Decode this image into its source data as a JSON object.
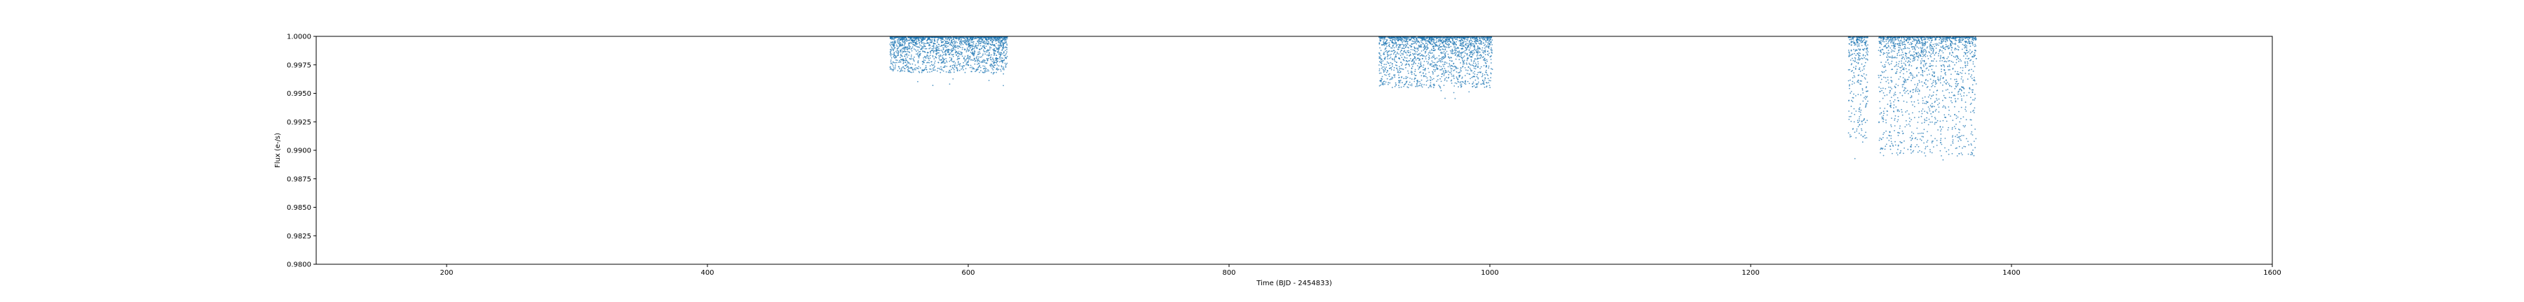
{
  "chart_data": {
    "type": "scatter",
    "title": "",
    "xlabel": "Time (BJD - 2454833)",
    "ylabel": "Flux (e-/s)",
    "xlim": [
      100,
      1600
    ],
    "ylim": [
      0.98,
      1.0
    ],
    "xticks": [
      200,
      400,
      600,
      800,
      1000,
      1200,
      1400,
      1600
    ],
    "xtick_labels": [
      "200",
      "400",
      "600",
      "800",
      "1000",
      "1200",
      "1400",
      "1600"
    ],
    "yticks": [
      0.98,
      0.9825,
      0.985,
      0.9875,
      0.99,
      0.9925,
      0.995,
      0.9975,
      1.0
    ],
    "ytick_labels": [
      "0.9800",
      "0.9825",
      "0.9850",
      "0.9875",
      "0.9900",
      "0.9925",
      "0.9950",
      "0.9975",
      "1.0000"
    ],
    "grid": false,
    "marker_color": "#1f77b4",
    "series": [
      {
        "segments": [
          {
            "x_start": 540,
            "x_end": 630,
            "y_min_typical": 0.9968,
            "y_min_outlier": 0.9955,
            "y_max": 1.0
          },
          {
            "x_start": 915,
            "x_end": 1002,
            "y_min_typical": 0.9955,
            "y_min_outlier": 0.9945,
            "y_max": 1.0
          },
          {
            "x_start": 1275,
            "x_end": 1290,
            "y_min_typical": 0.991,
            "y_min_outlier": 0.988,
            "y_max": 1.0
          },
          {
            "x_start": 1298,
            "x_end": 1373,
            "y_min_typical": 0.9895,
            "y_min_outlier": 0.9885,
            "y_max": 1.0
          }
        ]
      }
    ]
  }
}
